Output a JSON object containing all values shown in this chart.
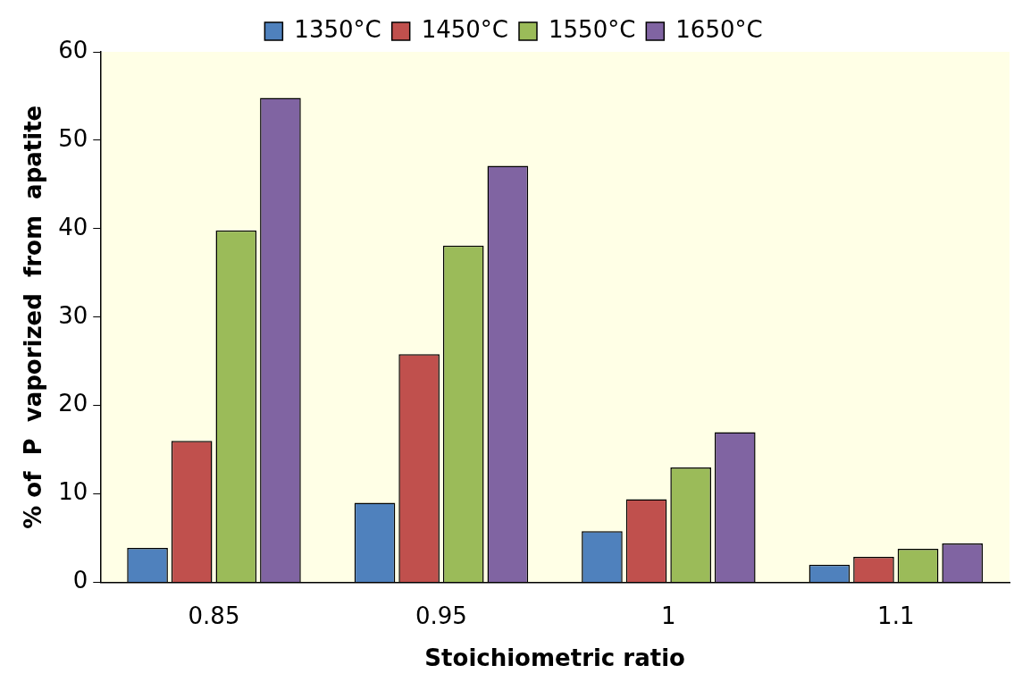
{
  "chart_data": {
    "type": "bar",
    "xlabel": "Stoichiometric ratio",
    "ylabel": "% of  P  vaporized  from  apatite",
    "categories": [
      "0.85",
      "0.95",
      "1",
      "1.1"
    ],
    "series": [
      {
        "name": "1350°C",
        "color": "#4f81bd",
        "values": [
          3.9,
          9.0,
          5.8,
          2.0
        ]
      },
      {
        "name": "1450°C",
        "color": "#c0504d",
        "values": [
          16,
          25.8,
          9.4,
          2.9
        ]
      },
      {
        "name": "1550°C",
        "color": "#9bbb59",
        "values": [
          39.8,
          38.1,
          13.0,
          3.8
        ]
      },
      {
        "name": "1650°C",
        "color": "#8064a2",
        "values": [
          54.8,
          47.1,
          17.0,
          4.4
        ]
      }
    ],
    "ylim": [
      0,
      60
    ],
    "yticks": [
      0,
      10,
      20,
      30,
      40,
      50,
      60
    ],
    "grid": false,
    "legend": "top"
  }
}
